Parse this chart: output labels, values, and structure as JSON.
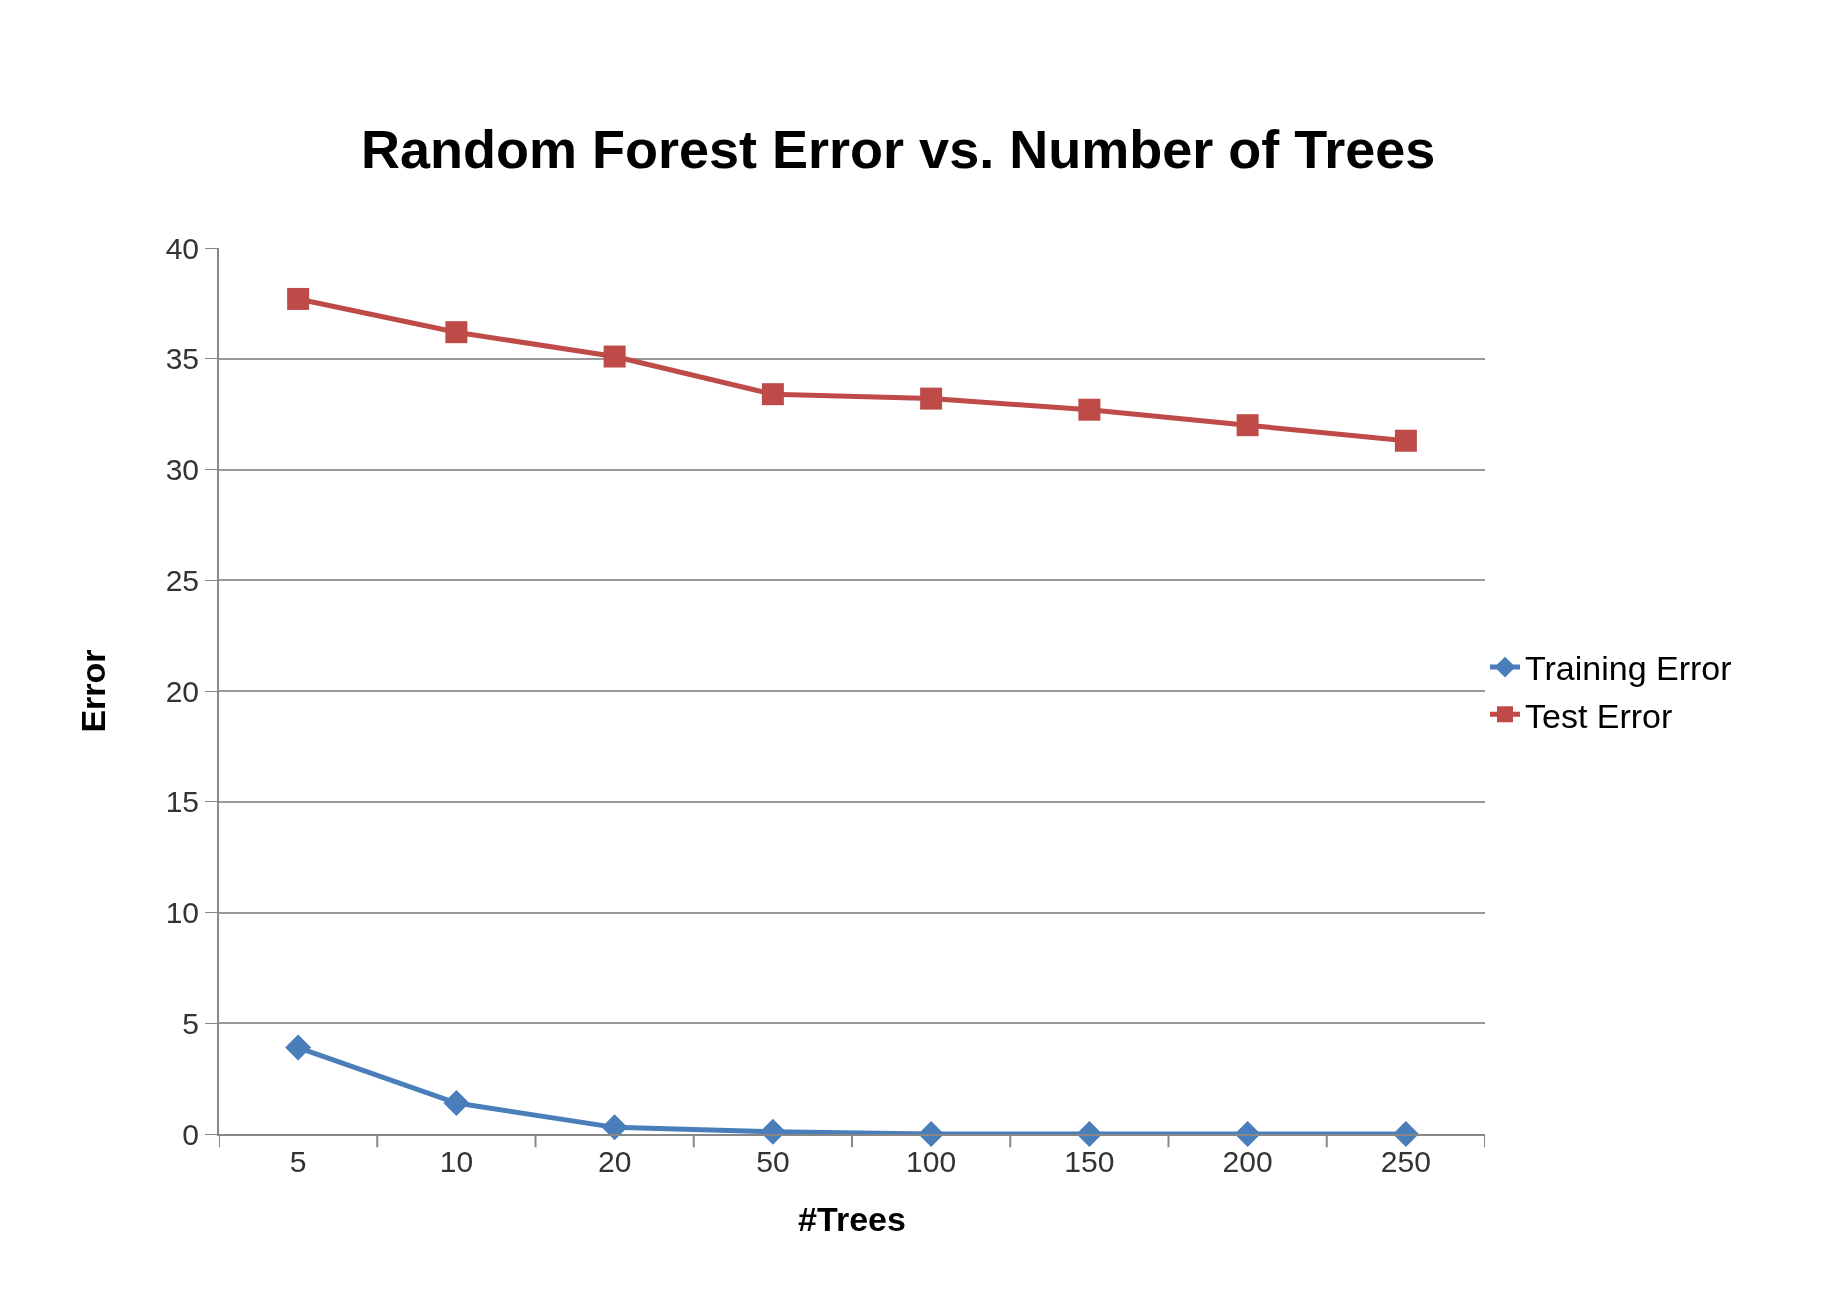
{
  "chart_data": {
    "type": "line",
    "title": "Random Forest Error vs. Number of Trees",
    "xlabel": "#Trees",
    "ylabel": "Error",
    "categories": [
      "5",
      "10",
      "20",
      "50",
      "100",
      "150",
      "200",
      "250"
    ],
    "series": [
      {
        "name": "Training Error",
        "color": "#4a7ebb",
        "marker": "diamond",
        "values": [
          3.9,
          1.4,
          0.3,
          0.1,
          0,
          0,
          0,
          0
        ]
      },
      {
        "name": "Test Error",
        "color": "#be4b48",
        "marker": "square",
        "values": [
          37.7,
          36.2,
          35.1,
          33.4,
          33.2,
          32.7,
          32.0,
          31.3
        ]
      }
    ],
    "ylim": [
      0,
      40
    ],
    "yticks": [
      0,
      5,
      10,
      15,
      20,
      25,
      30,
      35,
      40
    ],
    "grid": "y",
    "legend": "right",
    "line_style": "solid"
  }
}
